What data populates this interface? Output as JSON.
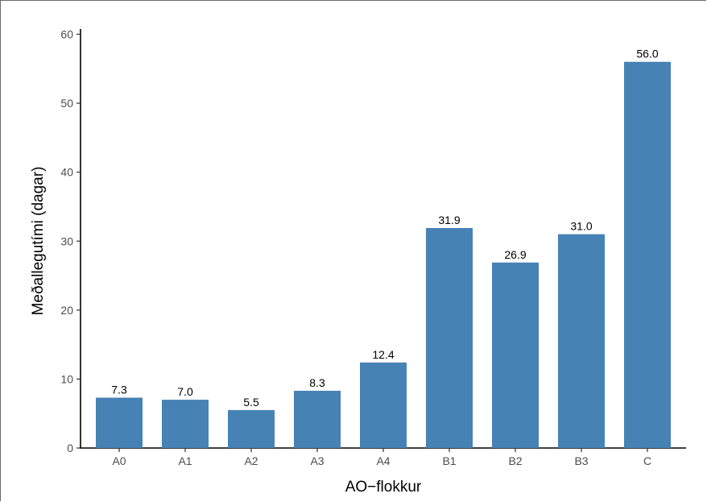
{
  "chart_data": {
    "type": "bar",
    "title": "",
    "xlabel": "AO−flokkur",
    "ylabel": "Meðallegutími (dagar)",
    "categories": [
      "A0",
      "A1",
      "A2",
      "A3",
      "A4",
      "B1",
      "B2",
      "B3",
      "C"
    ],
    "values": [
      7.3,
      7.0,
      5.5,
      8.3,
      12.4,
      31.9,
      26.9,
      31.0,
      56.0
    ],
    "data_labels": [
      "7.3",
      "7.0",
      "5.5",
      "8.3",
      "12.4",
      "31.9",
      "26.9",
      "31.0",
      "56.0"
    ],
    "ylim": [
      0,
      60
    ],
    "yticks": [
      0,
      10,
      20,
      30,
      40,
      50,
      60
    ],
    "grid": false,
    "legend": "none",
    "bar_color": "#4682B4"
  }
}
